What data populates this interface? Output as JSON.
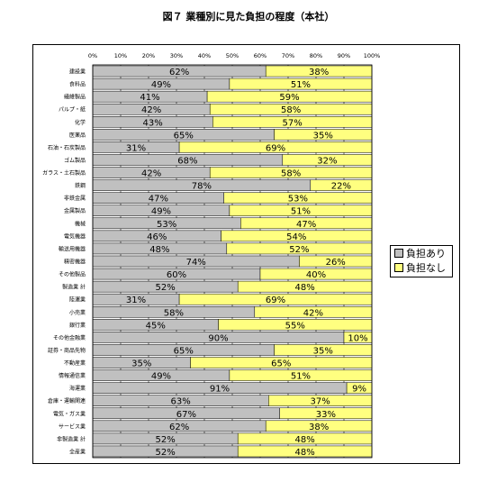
{
  "chart_data": {
    "type": "bar",
    "orientation": "horizontal",
    "stacked": true,
    "title": "図７ 業種別に見た負担の程度（本社）",
    "xlim": [
      0,
      100
    ],
    "x_tick_labels": [
      "0%",
      "10%",
      "20%",
      "30%",
      "40%",
      "50%",
      "60%",
      "70%",
      "80%",
      "90%",
      "100%"
    ],
    "grid": "vertical",
    "legend_position": "right",
    "categories": [
      "建設業",
      "食料品",
      "繊維製品",
      "パルプ・紙",
      "化学",
      "医薬品",
      "石油・石炭製品",
      "ゴム製品",
      "ガラス・土石製品",
      "鉄鋼",
      "非鉄金属",
      "金属製品",
      "機械",
      "電気機器",
      "輸送用機器",
      "精密機器",
      "その他製品",
      "製造業 計",
      "陸運業",
      "小売業",
      "銀行業",
      "その他金融業",
      "証券・商品先物",
      "不動産業",
      "情報通信業",
      "海運業",
      "倉庫・運輸関連",
      "電気・ガス業",
      "サービス業",
      "非製造業 計",
      "全産業"
    ],
    "series": [
      {
        "name": "負担あり",
        "color": "#c0c0c0",
        "values": [
          62,
          49,
          41,
          42,
          43,
          65,
          31,
          68,
          42,
          78,
          47,
          49,
          53,
          46,
          48,
          74,
          60,
          52,
          31,
          58,
          45,
          90,
          65,
          35,
          49,
          91,
          63,
          67,
          62,
          52,
          52
        ]
      },
      {
        "name": "負担なし",
        "color": "#ffff80",
        "values": [
          38,
          51,
          59,
          58,
          57,
          35,
          69,
          32,
          58,
          22,
          53,
          51,
          47,
          54,
          52,
          26,
          40,
          48,
          69,
          42,
          55,
          10,
          35,
          65,
          51,
          9,
          37,
          33,
          38,
          48,
          48
        ]
      }
    ]
  }
}
